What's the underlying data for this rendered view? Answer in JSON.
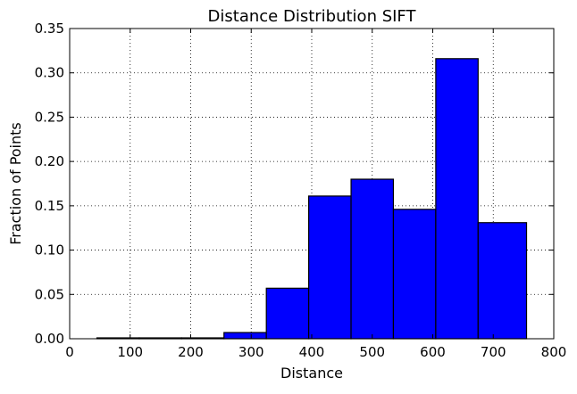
{
  "chart_data": {
    "type": "bar",
    "title": "Distance Distribution SIFT",
    "xlabel": "Distance",
    "ylabel": "Fraction of Points",
    "xlim": [
      0,
      800
    ],
    "ylim": [
      0,
      0.35
    ],
    "xticks": [
      0,
      100,
      200,
      300,
      400,
      500,
      600,
      700,
      800
    ],
    "xtick_labels": [
      "0",
      "100",
      "200",
      "300",
      "400",
      "500",
      "600",
      "700",
      "800"
    ],
    "yticks": [
      0.0,
      0.05,
      0.1,
      0.15,
      0.2,
      0.25,
      0.3,
      0.35
    ],
    "ytick_labels": [
      "0.00",
      "0.05",
      "0.10",
      "0.15",
      "0.20",
      "0.25",
      "0.30",
      "0.35"
    ],
    "grid": true,
    "bar_color": "#0000ff",
    "bin_edges": [
      45,
      115,
      185,
      255,
      325,
      395,
      465,
      535,
      605,
      675,
      755
    ],
    "values": [
      0.001,
      0.001,
      0.001,
      0.007,
      0.057,
      0.161,
      0.18,
      0.146,
      0.316,
      0.131
    ]
  }
}
